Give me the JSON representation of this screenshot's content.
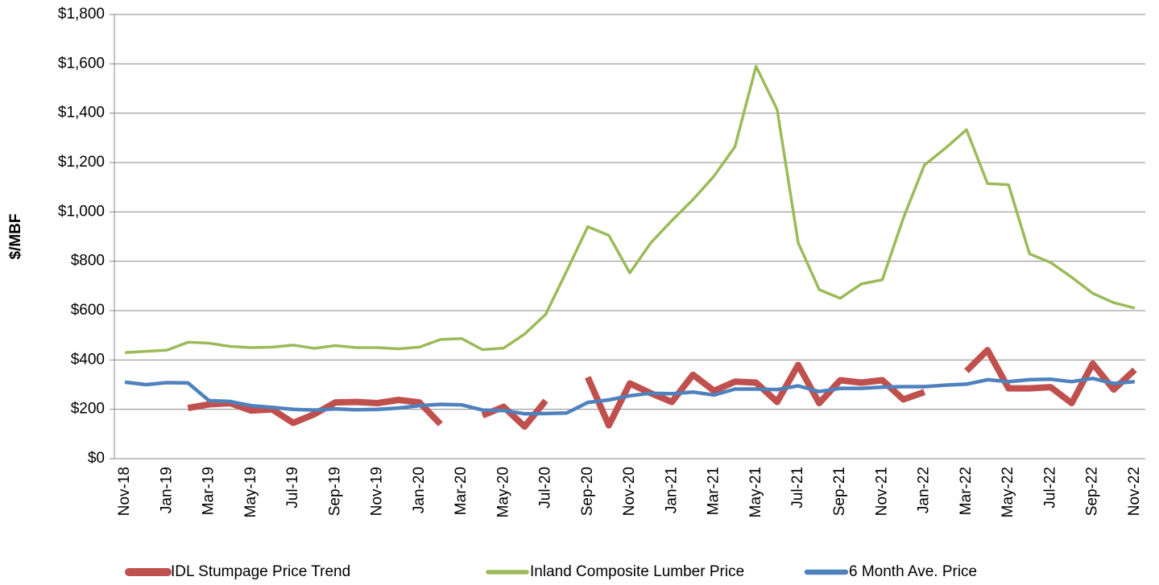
{
  "chart_data": {
    "type": "line",
    "ylabel": "$/MBF",
    "categories": [
      "Nov-18",
      null,
      "Jan-19",
      null,
      "Mar-19",
      null,
      "May-19",
      null,
      "Jul-19",
      null,
      "Sep-19",
      null,
      "Nov-19",
      null,
      "Jan-20",
      null,
      "Mar-20",
      null,
      "May-20",
      null,
      "Jul-20",
      null,
      "Sep-20",
      null,
      "Nov-20",
      null,
      "Jan-21",
      null,
      "Mar-21",
      null,
      "May-21",
      null,
      "Jul-21",
      null,
      "Sep-21",
      null,
      "Nov-21",
      null,
      "Jan-22",
      null,
      "Mar-22",
      null,
      "May-22",
      null,
      "Jul-22",
      null,
      "Sep-22",
      null,
      "Nov-22"
    ],
    "series": [
      {
        "name": "IDL Stumpage Price Trend",
        "color": "#c0504d",
        "values": [
          null,
          null,
          null,
          205,
          220,
          225,
          195,
          200,
          145,
          180,
          228,
          230,
          225,
          238,
          228,
          140,
          null,
          175,
          210,
          130,
          235,
          null,
          330,
          135,
          305,
          265,
          230,
          340,
          275,
          312,
          308,
          230,
          380,
          225,
          318,
          308,
          318,
          240,
          270,
          null,
          355,
          440,
          285,
          285,
          290,
          225,
          385,
          280,
          360
        ]
      },
      {
        "name": "Inland Composite Lumber Price",
        "color": "#9bbb59",
        "values": [
          430,
          435,
          440,
          472,
          468,
          455,
          450,
          452,
          460,
          447,
          458,
          450,
          450,
          445,
          452,
          483,
          487,
          442,
          448,
          505,
          585,
          760,
          940,
          905,
          753,
          875,
          965,
          1050,
          1145,
          1265,
          1590,
          1415,
          875,
          685,
          650,
          708,
          725,
          975,
          1190,
          1258,
          1333,
          1115,
          1110,
          830,
          795,
          735,
          670,
          632,
          610
        ]
      },
      {
        "name": "6 Month Ave. Price",
        "color": "#4f81bd",
        "values": [
          310,
          300,
          308,
          307,
          235,
          232,
          215,
          208,
          200,
          197,
          202,
          198,
          200,
          205,
          215,
          220,
          218,
          197,
          195,
          182,
          183,
          185,
          228,
          238,
          255,
          265,
          263,
          270,
          258,
          282,
          282,
          280,
          295,
          272,
          285,
          285,
          290,
          292,
          292,
          298,
          302,
          320,
          312,
          320,
          322,
          312,
          325,
          305,
          312
        ]
      }
    ],
    "ylim": [
      0,
      1800
    ],
    "yticks": [
      {
        "value": 0,
        "label": "$0"
      },
      {
        "value": 200,
        "label": "$200"
      },
      {
        "value": 400,
        "label": "$400"
      },
      {
        "value": 600,
        "label": "$600"
      },
      {
        "value": 800,
        "label": "$800"
      },
      {
        "value": 1000,
        "label": "$1,000"
      },
      {
        "value": 1200,
        "label": "$1,200"
      },
      {
        "value": 1400,
        "label": "$1,400"
      },
      {
        "value": 1600,
        "label": "$1,600"
      },
      {
        "value": 1800,
        "label": "$1,800"
      }
    ],
    "grid": true,
    "legend": "bottom"
  }
}
